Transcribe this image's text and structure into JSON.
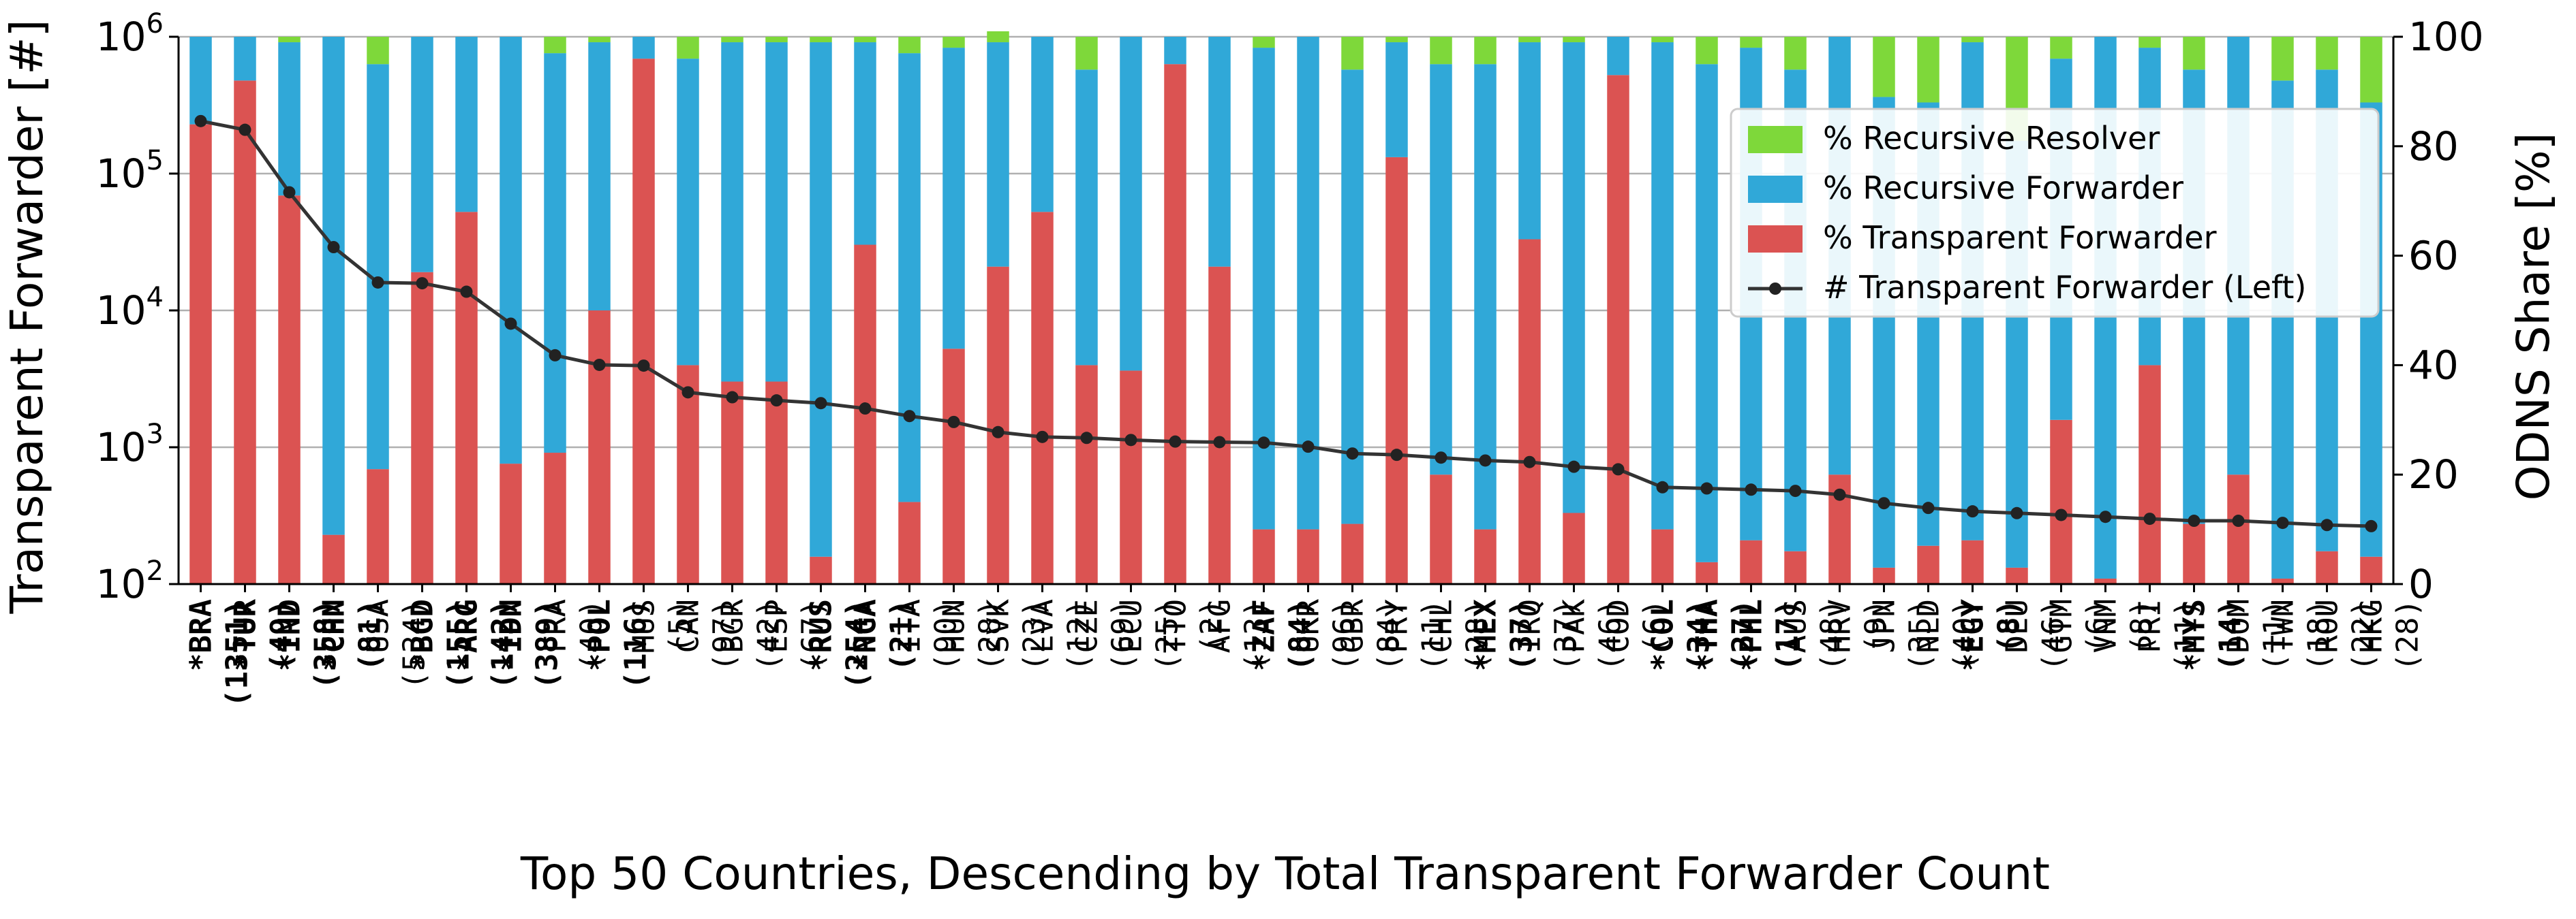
{
  "chart_data": {
    "type": "bar",
    "stacked": true,
    "xlabel": "Top 50 Countries, Descending by Total Transparent Forwarder Count",
    "ylabel_left": "Transparent Forwarder [#]",
    "ylabel_right": "ODNS Share [%]",
    "y_left_scale": "log",
    "y_left_lim": [
      100,
      1000000
    ],
    "y_left_ticks": [
      {
        "base": "10",
        "exp": "2"
      },
      {
        "base": "10",
        "exp": "3"
      },
      {
        "base": "10",
        "exp": "4"
      },
      {
        "base": "10",
        "exp": "5"
      },
      {
        "base": "10",
        "exp": "6"
      }
    ],
    "y_right_lim": [
      0,
      100
    ],
    "y_right_ticks": [
      "0",
      "20",
      "40",
      "60",
      "80",
      "100"
    ],
    "grid": "horizontal",
    "legend_position": "upper-right",
    "colors": {
      "recursive_resolver": "#7ed83a",
      "recursive_forwarder": "#30a8d8",
      "transparent_forwarder": "#db5352",
      "line": "#333333"
    },
    "legend": [
      "% Recursive Resolver",
      "% Recursive Forwarder",
      "% Transparent Forwarder",
      "# Transparent Forwarder (Left)"
    ],
    "categories": [
      "*BRA",
      "*TUR",
      "*IND",
      "*CHN",
      "USA",
      "*BGD",
      "*ARG",
      "*IDN",
      "FRA",
      "*POL",
      "MUS",
      "CAN",
      "BGR",
      "ESP",
      "*RUS",
      "*NGA",
      "ITA",
      "HUN",
      "SVK",
      "LVA",
      "CZE",
      "ECU",
      "TTO",
      "AFG",
      "*ZAF",
      "UKR",
      "GBR",
      "PRY",
      "CHL",
      "*MEX",
      "IRQ",
      "PAK",
      "COD",
      "*COL",
      "*THA",
      "*PHL",
      "AUS",
      "HRV",
      "JPN",
      "NLD",
      "*EGY",
      "DEU",
      "GTM",
      "VNM",
      "PRI",
      "*MYS",
      "DOM",
      "TWN",
      "ROU",
      "HKG"
    ],
    "counts": [
      "(1351)",
      "(49)",
      "(358)",
      "(81)",
      "(534)",
      "(155)",
      "(142)",
      "(389)",
      "(40)",
      "(116)",
      "(5)",
      "(97)",
      "(42)",
      "(67)",
      "(254)",
      "(21)",
      "(90)",
      "(28)",
      "(23)",
      "(12)",
      "(69)",
      "(25)",
      "(2)",
      "(13)",
      "(84)",
      "(96)",
      "(84)",
      "(11)",
      "(28)",
      "(37)",
      "(37)",
      "(46)",
      "(6)",
      "(34)",
      "(27)",
      "(17)",
      "(48)",
      "(9)",
      "(35)",
      "(40)",
      "(8)",
      "(46)",
      "(6)",
      "(8)",
      "(11)",
      "(14)",
      "(11)",
      "(18)",
      "(22)",
      "(28)"
    ],
    "bold": [
      true,
      true,
      true,
      true,
      false,
      true,
      true,
      true,
      false,
      true,
      false,
      false,
      false,
      false,
      true,
      true,
      false,
      false,
      false,
      false,
      false,
      false,
      false,
      false,
      true,
      false,
      false,
      false,
      false,
      true,
      false,
      false,
      false,
      true,
      true,
      true,
      false,
      false,
      false,
      false,
      true,
      false,
      false,
      false,
      false,
      true,
      false,
      false,
      false,
      false
    ],
    "series": [
      {
        "name": "% Transparent Forwarder",
        "values": [
          84,
          92,
          71,
          9,
          21,
          57,
          68,
          22,
          24,
          50,
          96,
          40,
          37,
          37,
          5,
          62,
          15,
          43,
          58,
          68,
          40,
          39,
          95,
          58,
          10,
          10,
          11,
          78,
          20,
          10,
          63,
          13,
          93,
          10,
          4,
          8,
          6,
          20,
          3,
          7,
          8,
          3,
          30,
          1,
          40,
          11,
          20,
          1,
          6,
          5
        ]
      },
      {
        "name": "% Recursive Forwarder",
        "values": [
          16,
          8,
          28,
          91,
          74,
          43,
          32,
          78,
          73,
          49,
          4,
          56,
          62,
          62,
          94,
          37,
          82,
          55,
          41,
          32,
          54,
          61,
          5,
          42,
          88,
          90,
          83,
          21,
          75,
          85,
          36,
          86,
          7,
          89,
          91,
          90,
          88,
          80,
          86,
          81,
          91,
          78,
          66,
          99,
          58,
          83,
          80,
          91,
          88,
          83
        ]
      },
      {
        "name": "% Recursive Resolver",
        "values": [
          0,
          0,
          1,
          0,
          5,
          0,
          0,
          0,
          3,
          1,
          0,
          4,
          1,
          1,
          1,
          1,
          3,
          2,
          2,
          0,
          6,
          0,
          0,
          0,
          2,
          0,
          6,
          1,
          5,
          5,
          1,
          1,
          0,
          1,
          5,
          2,
          6,
          0,
          11,
          12,
          1,
          19,
          4,
          0,
          2,
          6,
          0,
          8,
          6,
          12
        ]
      }
    ],
    "line_values": [
      242000,
      209000,
      73000,
      29000,
      16000,
      15800,
      13700,
      8000,
      4700,
      4000,
      3950,
      2520,
      2320,
      2200,
      2100,
      1920,
      1690,
      1530,
      1290,
      1190,
      1170,
      1130,
      1100,
      1090,
      1080,
      1010,
      900,
      880,
      840,
      800,
      780,
      720,
      690,
      510,
      500,
      490,
      480,
      450,
      390,
      360,
      340,
      330,
      320,
      310,
      300,
      290,
      290,
      280,
      270,
      265
    ]
  }
}
